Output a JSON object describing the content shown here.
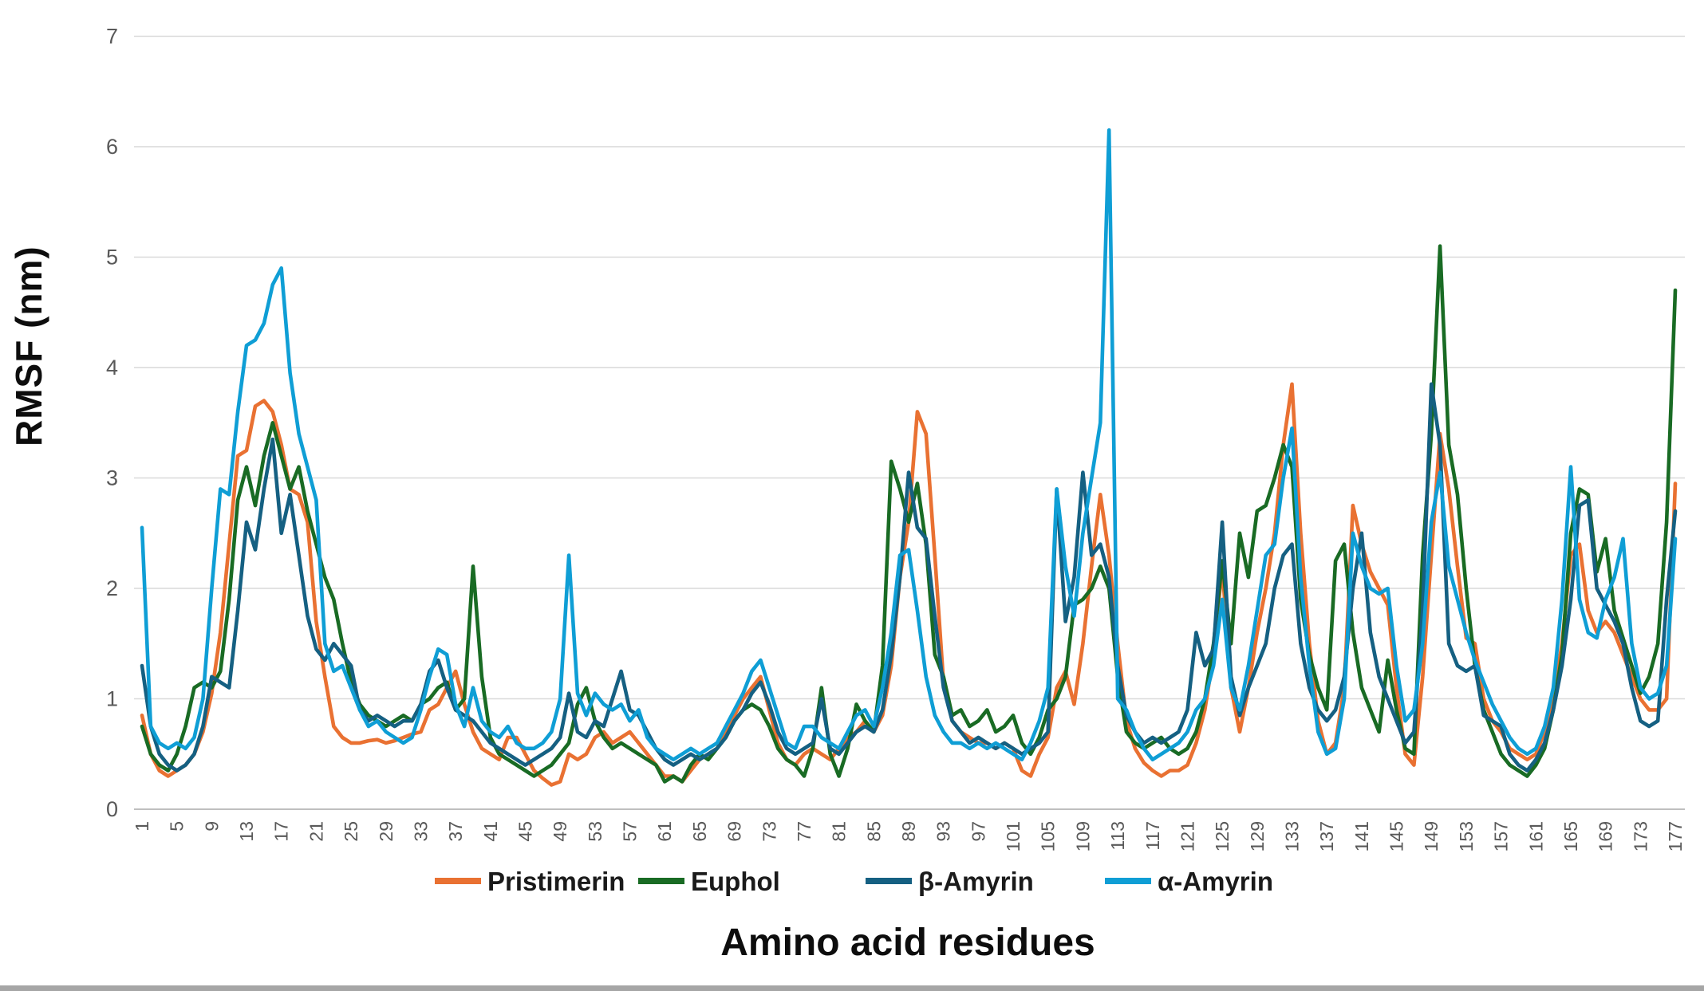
{
  "chart_data": {
    "type": "line",
    "title": "",
    "xlabel": "Amino acid residues",
    "ylabel": "RMSF (nm)",
    "ylim": [
      0,
      7
    ],
    "y_ticks": [
      0,
      1,
      2,
      3,
      4,
      5,
      6,
      7
    ],
    "x_start": 1,
    "x_end": 177,
    "x_ticks": [
      1,
      5,
      9,
      13,
      17,
      21,
      25,
      29,
      33,
      37,
      41,
      45,
      49,
      53,
      57,
      61,
      65,
      69,
      73,
      77,
      81,
      85,
      89,
      93,
      97,
      101,
      105,
      109,
      113,
      117,
      121,
      125,
      129,
      133,
      137,
      141,
      145,
      149,
      153,
      157,
      161,
      165,
      169,
      173,
      177
    ],
    "grid": "horizontal",
    "gridline_color": "#D9D9D9",
    "axisline_color": "#BFBFBF",
    "tick_label_color": "#595959",
    "legend_position": "bottom",
    "series": [
      {
        "name": "Pristimerin",
        "color": "#E97132",
        "values": [
          0.85,
          0.5,
          0.35,
          0.3,
          0.35,
          0.4,
          0.5,
          0.7,
          1.05,
          1.6,
          2.4,
          3.2,
          3.25,
          3.65,
          3.7,
          3.6,
          3.3,
          2.9,
          2.85,
          2.6,
          1.7,
          1.2,
          0.75,
          0.65,
          0.6,
          0.6,
          0.62,
          0.63,
          0.6,
          0.62,
          0.65,
          0.68,
          0.7,
          0.9,
          0.95,
          1.1,
          1.25,
          0.95,
          0.7,
          0.55,
          0.5,
          0.45,
          0.65,
          0.65,
          0.5,
          0.35,
          0.28,
          0.22,
          0.25,
          0.5,
          0.45,
          0.5,
          0.65,
          0.7,
          0.6,
          0.65,
          0.7,
          0.6,
          0.5,
          0.4,
          0.3,
          0.3,
          0.25,
          0.35,
          0.45,
          0.5,
          0.55,
          0.7,
          0.85,
          1.0,
          1.1,
          1.2,
          0.9,
          0.6,
          0.45,
          0.4,
          0.5,
          0.55,
          0.5,
          0.45,
          0.55,
          0.65,
          0.7,
          0.8,
          0.7,
          0.85,
          1.3,
          2.1,
          2.6,
          3.6,
          3.4,
          2.3,
          1.15,
          0.8,
          0.7,
          0.65,
          0.6,
          0.6,
          0.55,
          0.6,
          0.55,
          0.35,
          0.3,
          0.5,
          0.65,
          1.1,
          1.25,
          0.95,
          1.5,
          2.2,
          2.85,
          2.3,
          1.5,
          0.8,
          0.55,
          0.42,
          0.35,
          0.3,
          0.35,
          0.35,
          0.4,
          0.6,
          0.9,
          1.4,
          2.2,
          1.1,
          0.7,
          1.1,
          1.6,
          2.0,
          2.5,
          3.3,
          3.85,
          2.5,
          1.5,
          0.8,
          0.5,
          0.6,
          1.1,
          2.75,
          2.4,
          2.15,
          2.0,
          1.85,
          1.1,
          0.5,
          0.4,
          1.2,
          2.3,
          3.4,
          2.9,
          2.2,
          1.55,
          1.5,
          1.0,
          0.8,
          0.7,
          0.55,
          0.5,
          0.45,
          0.5,
          0.7,
          1.0,
          1.5,
          2.3,
          2.4,
          1.8,
          1.6,
          1.7,
          1.6,
          1.4,
          1.2,
          1.0,
          0.9,
          0.9,
          1.0,
          2.95
        ]
      },
      {
        "name": "Euphol",
        "color": "#196B24",
        "values": [
          0.75,
          0.5,
          0.4,
          0.35,
          0.5,
          0.75,
          1.1,
          1.15,
          1.1,
          1.25,
          1.9,
          2.8,
          3.1,
          2.75,
          3.2,
          3.5,
          3.2,
          2.9,
          3.1,
          2.7,
          2.4,
          2.1,
          1.9,
          1.5,
          1.15,
          0.95,
          0.85,
          0.8,
          0.75,
          0.8,
          0.85,
          0.8,
          0.95,
          1.0,
          1.1,
          1.15,
          0.9,
          1.0,
          2.2,
          1.2,
          0.65,
          0.5,
          0.45,
          0.4,
          0.35,
          0.3,
          0.35,
          0.4,
          0.5,
          0.6,
          0.95,
          1.1,
          0.8,
          0.65,
          0.55,
          0.6,
          0.55,
          0.5,
          0.45,
          0.4,
          0.25,
          0.3,
          0.25,
          0.4,
          0.5,
          0.45,
          0.55,
          0.65,
          0.8,
          0.9,
          0.95,
          0.9,
          0.75,
          0.55,
          0.45,
          0.4,
          0.3,
          0.55,
          1.1,
          0.5,
          0.3,
          0.55,
          0.95,
          0.8,
          0.7,
          1.3,
          3.15,
          2.9,
          2.6,
          2.95,
          2.4,
          1.4,
          1.2,
          0.85,
          0.9,
          0.75,
          0.8,
          0.9,
          0.7,
          0.75,
          0.85,
          0.6,
          0.5,
          0.65,
          0.9,
          1.0,
          1.2,
          1.85,
          1.9,
          2.0,
          2.2,
          2.0,
          1.2,
          0.7,
          0.6,
          0.55,
          0.6,
          0.65,
          0.55,
          0.5,
          0.55,
          0.7,
          1.0,
          1.5,
          2.25,
          1.5,
          2.5,
          2.1,
          2.7,
          2.75,
          3.0,
          3.3,
          3.1,
          1.9,
          1.4,
          1.1,
          0.9,
          2.25,
          2.4,
          1.6,
          1.1,
          0.9,
          0.7,
          1.35,
          0.9,
          0.55,
          0.5,
          2.3,
          3.4,
          5.1,
          3.3,
          2.85,
          2.0,
          1.3,
          0.9,
          0.7,
          0.5,
          0.4,
          0.35,
          0.3,
          0.4,
          0.55,
          0.9,
          1.4,
          2.5,
          2.9,
          2.85,
          2.15,
          2.45,
          1.8,
          1.55,
          1.3,
          1.05,
          1.2,
          1.5,
          2.6,
          4.7
        ]
      },
      {
        "name": "β-Amyrin",
        "color": "#156082",
        "values": [
          1.3,
          0.75,
          0.5,
          0.4,
          0.35,
          0.4,
          0.5,
          0.75,
          1.2,
          1.15,
          1.1,
          1.8,
          2.6,
          2.35,
          2.9,
          3.35,
          2.5,
          2.85,
          2.3,
          1.75,
          1.45,
          1.35,
          1.5,
          1.4,
          1.3,
          0.9,
          0.8,
          0.85,
          0.8,
          0.75,
          0.8,
          0.8,
          0.95,
          1.25,
          1.35,
          1.1,
          0.9,
          0.85,
          0.8,
          0.7,
          0.6,
          0.55,
          0.5,
          0.45,
          0.4,
          0.45,
          0.5,
          0.55,
          0.65,
          1.05,
          0.7,
          0.65,
          0.8,
          0.75,
          1.0,
          1.25,
          0.9,
          0.85,
          0.7,
          0.55,
          0.45,
          0.4,
          0.45,
          0.5,
          0.45,
          0.5,
          0.55,
          0.65,
          0.8,
          0.9,
          1.05,
          1.15,
          0.95,
          0.7,
          0.55,
          0.5,
          0.55,
          0.6,
          1.0,
          0.55,
          0.5,
          0.6,
          0.7,
          0.75,
          0.7,
          0.9,
          1.4,
          2.1,
          3.05,
          2.55,
          2.45,
          1.75,
          1.1,
          0.8,
          0.7,
          0.6,
          0.65,
          0.6,
          0.55,
          0.6,
          0.55,
          0.5,
          0.55,
          0.6,
          0.7,
          2.9,
          1.7,
          2.1,
          3.05,
          2.3,
          2.4,
          2.1,
          1.3,
          0.85,
          0.7,
          0.6,
          0.65,
          0.6,
          0.65,
          0.7,
          0.9,
          1.6,
          1.3,
          1.45,
          2.6,
          1.2,
          0.85,
          1.1,
          1.3,
          1.5,
          2.0,
          2.3,
          2.4,
          1.5,
          1.1,
          0.9,
          0.8,
          0.9,
          1.2,
          2.0,
          2.5,
          1.6,
          1.2,
          1.0,
          0.8,
          0.6,
          0.7,
          1.8,
          3.85,
          3.3,
          1.5,
          1.3,
          1.25,
          1.3,
          0.85,
          0.8,
          0.75,
          0.5,
          0.4,
          0.35,
          0.45,
          0.6,
          0.9,
          1.3,
          1.9,
          2.75,
          2.8,
          2.0,
          1.85,
          1.7,
          1.5,
          1.1,
          0.8,
          0.75,
          0.8,
          1.9,
          2.7
        ]
      },
      {
        "name": "α-Amyrin",
        "color": "#0F9ED5",
        "values": [
          2.55,
          0.75,
          0.6,
          0.55,
          0.6,
          0.55,
          0.65,
          1.0,
          2.0,
          2.9,
          2.85,
          3.6,
          4.2,
          4.25,
          4.4,
          4.75,
          4.9,
          3.95,
          3.4,
          3.1,
          2.8,
          1.5,
          1.25,
          1.3,
          1.1,
          0.9,
          0.75,
          0.8,
          0.7,
          0.65,
          0.6,
          0.65,
          0.9,
          1.2,
          1.45,
          1.4,
          0.95,
          0.75,
          1.1,
          0.8,
          0.7,
          0.65,
          0.75,
          0.6,
          0.55,
          0.55,
          0.6,
          0.7,
          1.0,
          2.3,
          1.05,
          0.85,
          1.05,
          0.95,
          0.9,
          0.95,
          0.8,
          0.9,
          0.65,
          0.55,
          0.5,
          0.45,
          0.5,
          0.55,
          0.5,
          0.55,
          0.6,
          0.75,
          0.9,
          1.05,
          1.25,
          1.35,
          1.1,
          0.85,
          0.6,
          0.55,
          0.75,
          0.75,
          0.65,
          0.6,
          0.55,
          0.7,
          0.85,
          0.9,
          0.75,
          1.1,
          1.6,
          2.3,
          2.35,
          1.8,
          1.2,
          0.85,
          0.7,
          0.6,
          0.6,
          0.55,
          0.6,
          0.55,
          0.6,
          0.55,
          0.5,
          0.45,
          0.6,
          0.8,
          1.1,
          2.9,
          2.2,
          1.75,
          2.5,
          3.0,
          3.5,
          6.15,
          1.0,
          0.9,
          0.7,
          0.55,
          0.45,
          0.5,
          0.55,
          0.6,
          0.7,
          0.9,
          1.0,
          1.3,
          1.9,
          1.1,
          0.9,
          1.3,
          1.8,
          2.3,
          2.4,
          3.0,
          3.45,
          2.1,
          1.3,
          0.7,
          0.5,
          0.55,
          1.0,
          2.5,
          2.2,
          2.0,
          1.95,
          2.0,
          1.3,
          0.8,
          0.9,
          1.5,
          2.6,
          3.05,
          2.2,
          1.9,
          1.6,
          1.35,
          1.15,
          0.95,
          0.8,
          0.65,
          0.55,
          0.5,
          0.55,
          0.75,
          1.1,
          1.9,
          3.1,
          1.9,
          1.6,
          1.55,
          1.9,
          2.1,
          2.45,
          1.5,
          1.1,
          1.0,
          1.05,
          1.3,
          2.45
        ]
      }
    ]
  }
}
